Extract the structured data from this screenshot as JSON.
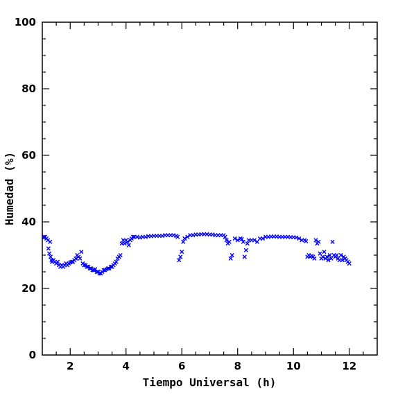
{
  "chart_data": {
    "type": "scatter",
    "xlabel": "Tiempo Universal (h)",
    "ylabel": "Humedad (%)",
    "xlim": [
      1,
      13
    ],
    "ylim": [
      0,
      100
    ],
    "x_ticks": [
      2,
      4,
      6,
      8,
      10,
      12
    ],
    "x_tick_labels": [
      "2",
      "4",
      "6",
      "8",
      "10",
      "12"
    ],
    "y_ticks": [
      0,
      20,
      40,
      60,
      80,
      100
    ],
    "y_tick_labels": [
      "0",
      "20",
      "40",
      "60",
      "80",
      "100"
    ],
    "marker": "x",
    "marker_color": "#0000ff",
    "grid": false,
    "series": [
      {
        "x": [
          1.05,
          1.1,
          1.15,
          1.2,
          1.22,
          1.25,
          1.28,
          1.3,
          1.33,
          1.35,
          1.4,
          1.45,
          1.5,
          1.55,
          1.6,
          1.65,
          1.7,
          1.75,
          1.8,
          1.85,
          1.9,
          1.95,
          2.0,
          2.05,
          2.1,
          2.15,
          2.2,
          2.25,
          2.3,
          2.35,
          2.4,
          2.45,
          2.5,
          2.55,
          2.6,
          2.65,
          2.7,
          2.75,
          2.8,
          2.85,
          2.9,
          2.95,
          3.0,
          3.05,
          3.1,
          3.15,
          3.2,
          3.25,
          3.3,
          3.35,
          3.4,
          3.45,
          3.5,
          3.55,
          3.6,
          3.65,
          3.7,
          3.75,
          3.8,
          3.85,
          3.9,
          3.95,
          4.0,
          4.05,
          4.1,
          4.15,
          4.2,
          4.25,
          4.3,
          4.4,
          4.5,
          4.6,
          4.7,
          4.8,
          4.9,
          5.0,
          5.1,
          5.2,
          5.3,
          5.4,
          5.5,
          5.6,
          5.7,
          5.8,
          5.85,
          5.9,
          5.95,
          6.0,
          6.05,
          6.1,
          6.2,
          6.3,
          6.4,
          6.5,
          6.6,
          6.7,
          6.8,
          6.9,
          7.0,
          7.1,
          7.2,
          7.3,
          7.4,
          7.5,
          7.55,
          7.6,
          7.65,
          7.7,
          7.75,
          7.8,
          7.9,
          8.0,
          8.1,
          8.15,
          8.2,
          8.25,
          8.3,
          8.35,
          8.4,
          8.5,
          8.6,
          8.7,
          8.8,
          8.9,
          9.0,
          9.1,
          9.2,
          9.3,
          9.4,
          9.5,
          9.6,
          9.7,
          9.8,
          9.9,
          10.0,
          10.1,
          10.2,
          10.3,
          10.4,
          10.45,
          10.5,
          10.55,
          10.6,
          10.65,
          10.7,
          10.75,
          10.8,
          10.85,
          10.9,
          10.95,
          11.0,
          11.05,
          11.1,
          11.15,
          11.2,
          11.25,
          11.3,
          11.35,
          11.4,
          11.45,
          11.5,
          11.55,
          11.6,
          11.65,
          11.7,
          11.75,
          11.8,
          11.85,
          11.9,
          11.95,
          12.0
        ],
        "y": [
          35.5,
          35.5,
          35.0,
          34.5,
          32.0,
          30.5,
          34.0,
          29.5,
          28.5,
          28.0,
          28.5,
          28.0,
          27.5,
          28.0,
          27.0,
          26.5,
          27.0,
          26.5,
          27.0,
          27.5,
          27.0,
          27.5,
          27.8,
          28.0,
          28.0,
          28.5,
          29.0,
          30.0,
          29.5,
          29.0,
          31.0,
          27.5,
          27.0,
          27.0,
          26.5,
          26.5,
          26.0,
          26.0,
          25.5,
          25.5,
          25.8,
          25.0,
          25.0,
          24.5,
          24.5,
          25.0,
          25.5,
          25.5,
          25.8,
          26.0,
          26.0,
          26.5,
          26.5,
          27.0,
          27.5,
          28.0,
          29.0,
          29.5,
          30.0,
          33.5,
          34.5,
          33.5,
          34.5,
          34.0,
          33.0,
          34.5,
          35.0,
          35.5,
          35.5,
          35.5,
          35.3,
          35.5,
          35.5,
          35.7,
          35.7,
          35.8,
          35.8,
          35.8,
          35.8,
          36.0,
          36.0,
          36.0,
          36.0,
          35.8,
          35.5,
          28.5,
          29.5,
          31.0,
          34.0,
          35.0,
          35.5,
          36.0,
          36.0,
          36.2,
          36.2,
          36.3,
          36.3,
          36.3,
          36.2,
          36.2,
          36.0,
          36.0,
          36.0,
          36.0,
          35.5,
          34.5,
          33.5,
          34.0,
          29.0,
          30.0,
          35.0,
          34.5,
          35.0,
          34.8,
          34.0,
          29.5,
          31.5,
          33.5,
          34.5,
          34.5,
          34.5,
          34.0,
          35.0,
          35.0,
          35.5,
          35.5,
          35.6,
          35.6,
          35.6,
          35.5,
          35.5,
          35.5,
          35.5,
          35.4,
          35.4,
          35.3,
          35.0,
          34.5,
          34.5,
          34.2,
          29.5,
          30.0,
          29.5,
          29.8,
          29.5,
          29.0,
          34.5,
          33.5,
          34.0,
          30.5,
          29.0,
          29.5,
          31.0,
          29.0,
          29.5,
          28.5,
          30.0,
          29.0,
          34.0,
          30.0,
          29.5,
          30.0,
          29.0,
          28.5,
          30.0,
          28.5,
          29.5,
          29.0,
          28.5,
          28.0,
          27.5
        ]
      }
    ]
  }
}
